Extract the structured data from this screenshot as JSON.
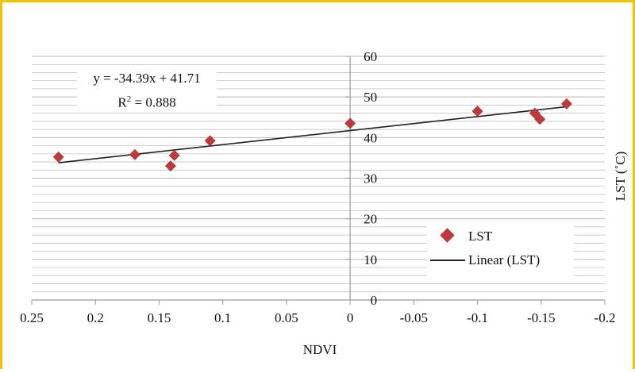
{
  "chart_data": {
    "type": "scatter",
    "title": "",
    "xlabel": "NDVI",
    "ylabel": "LST (˚C)",
    "xlim": [
      0.25,
      -0.2
    ],
    "ylim": [
      0,
      60
    ],
    "x_reversed": true,
    "x_ticks": [
      "0.25",
      "0.2",
      "0.15",
      "0.1",
      "0.05",
      "0",
      "-0.05",
      "-0.1",
      "-0.15",
      "-0.2"
    ],
    "y_ticks": [
      "0",
      "10",
      "20",
      "30",
      "40",
      "50",
      "60"
    ],
    "grid": true,
    "series": [
      {
        "name": "LST",
        "marker": "diamond",
        "color": "#c0393b",
        "points": [
          {
            "x": 0.229,
            "y": 35.2
          },
          {
            "x": 0.169,
            "y": 35.8
          },
          {
            "x": 0.141,
            "y": 33.0
          },
          {
            "x": 0.138,
            "y": 35.6
          },
          {
            "x": 0.11,
            "y": 39.2
          },
          {
            "x": 0.0,
            "y": 43.5
          },
          {
            "x": -0.1,
            "y": 46.5
          },
          {
            "x": -0.145,
            "y": 46.0
          },
          {
            "x": -0.149,
            "y": 44.5
          },
          {
            "x": -0.17,
            "y": 48.3
          }
        ]
      },
      {
        "name": "Linear (LST)",
        "type": "line",
        "color": "#222222",
        "points": [
          {
            "x": 0.229,
            "y": 33.8
          },
          {
            "x": -0.17,
            "y": 47.6
          }
        ]
      }
    ],
    "annotations": {
      "equation": "y = -34.39x + 41.71",
      "r2_prefix": "R",
      "r2_sup": "2",
      "r2_value": " = 0.888"
    },
    "legend": {
      "placement": "bottom-right",
      "entries": [
        "LST",
        "Linear (LST)"
      ]
    },
    "colors": {
      "border": "#f2c200",
      "gridline": "#b8b8b8",
      "axis": "#999999",
      "marker": "#c0393b",
      "trendline": "#222222"
    }
  }
}
